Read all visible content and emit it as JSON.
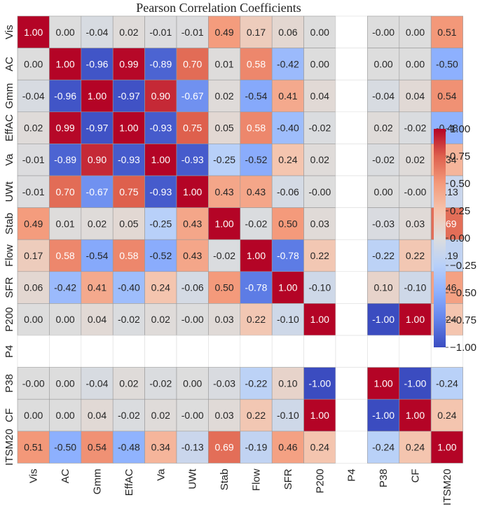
{
  "chart_data": {
    "type": "heatmap",
    "title": "Pearson Correlation Coefficients",
    "variables": [
      "Vis",
      "AC",
      "Gmm",
      "EffAC",
      "Va",
      "UWt",
      "Stab",
      "Flow",
      "SFR",
      "P200",
      "P4",
      "P38",
      "CF",
      "ITSM20"
    ],
    "values": [
      [
        1.0,
        0.0,
        -0.04,
        0.02,
        -0.01,
        -0.01,
        0.49,
        0.17,
        0.06,
        0.0,
        null,
        -0.0,
        0.0,
        0.51
      ],
      [
        0.0,
        1.0,
        -0.96,
        0.99,
        -0.89,
        0.7,
        0.01,
        0.58,
        -0.42,
        0.0,
        null,
        0.0,
        0.0,
        -0.5
      ],
      [
        -0.04,
        -0.96,
        1.0,
        -0.97,
        0.9,
        -0.67,
        0.02,
        -0.54,
        0.41,
        0.04,
        null,
        -0.04,
        0.04,
        0.54
      ],
      [
        0.02,
        0.99,
        -0.97,
        1.0,
        -0.93,
        0.75,
        0.05,
        0.58,
        -0.4,
        -0.02,
        null,
        0.02,
        -0.02,
        -0.48
      ],
      [
        -0.01,
        -0.89,
        0.9,
        -0.93,
        1.0,
        -0.93,
        -0.25,
        -0.52,
        0.24,
        0.02,
        null,
        -0.02,
        0.02,
        0.34
      ],
      [
        -0.01,
        0.7,
        -0.67,
        0.75,
        -0.93,
        1.0,
        0.43,
        0.43,
        -0.06,
        -0.0,
        null,
        0.0,
        -0.0,
        -0.13
      ],
      [
        0.49,
        0.01,
        0.02,
        0.05,
        -0.25,
        0.43,
        1.0,
        -0.02,
        0.5,
        0.03,
        null,
        -0.03,
        0.03,
        0.69
      ],
      [
        0.17,
        0.58,
        -0.54,
        0.58,
        -0.52,
        0.43,
        -0.02,
        1.0,
        -0.78,
        0.22,
        null,
        -0.22,
        0.22,
        -0.19
      ],
      [
        0.06,
        -0.42,
        0.41,
        -0.4,
        0.24,
        -0.06,
        0.5,
        -0.78,
        1.0,
        -0.1,
        null,
        0.1,
        -0.1,
        0.46
      ],
      [
        0.0,
        0.0,
        0.04,
        -0.02,
        0.02,
        -0.0,
        0.03,
        0.22,
        -0.1,
        1.0,
        null,
        -1.0,
        1.0,
        0.24
      ],
      [
        null,
        null,
        null,
        null,
        null,
        null,
        null,
        null,
        null,
        null,
        null,
        null,
        null,
        null
      ],
      [
        -0.0,
        0.0,
        -0.04,
        0.02,
        -0.02,
        0.0,
        -0.03,
        -0.22,
        0.1,
        -1.0,
        null,
        1.0,
        -1.0,
        -0.24
      ],
      [
        0.0,
        0.0,
        0.04,
        -0.02,
        0.02,
        -0.0,
        0.03,
        0.22,
        -0.1,
        1.0,
        null,
        -1.0,
        1.0,
        0.24
      ],
      [
        0.51,
        -0.5,
        0.54,
        -0.48,
        0.34,
        -0.13,
        0.69,
        -0.19,
        0.46,
        0.24,
        null,
        -0.24,
        0.24,
        1.0
      ]
    ],
    "colorbar": {
      "range": [
        -1.0,
        1.0
      ],
      "ticks": [
        "1.00",
        "0.75",
        "0.50",
        "0.25",
        "0.00",
        "−0.25",
        "−0.50",
        "−0.75",
        "−1.00"
      ],
      "tick_values": [
        1.0,
        0.75,
        0.5,
        0.25,
        0.0,
        -0.25,
        -0.5,
        -0.75,
        -1.0
      ],
      "colormap": "coolwarm"
    },
    "colors": {
      "low": "#3b4cc0",
      "mid": "#dddddd",
      "high": "#b40426",
      "cell_border": "#999999"
    }
  }
}
